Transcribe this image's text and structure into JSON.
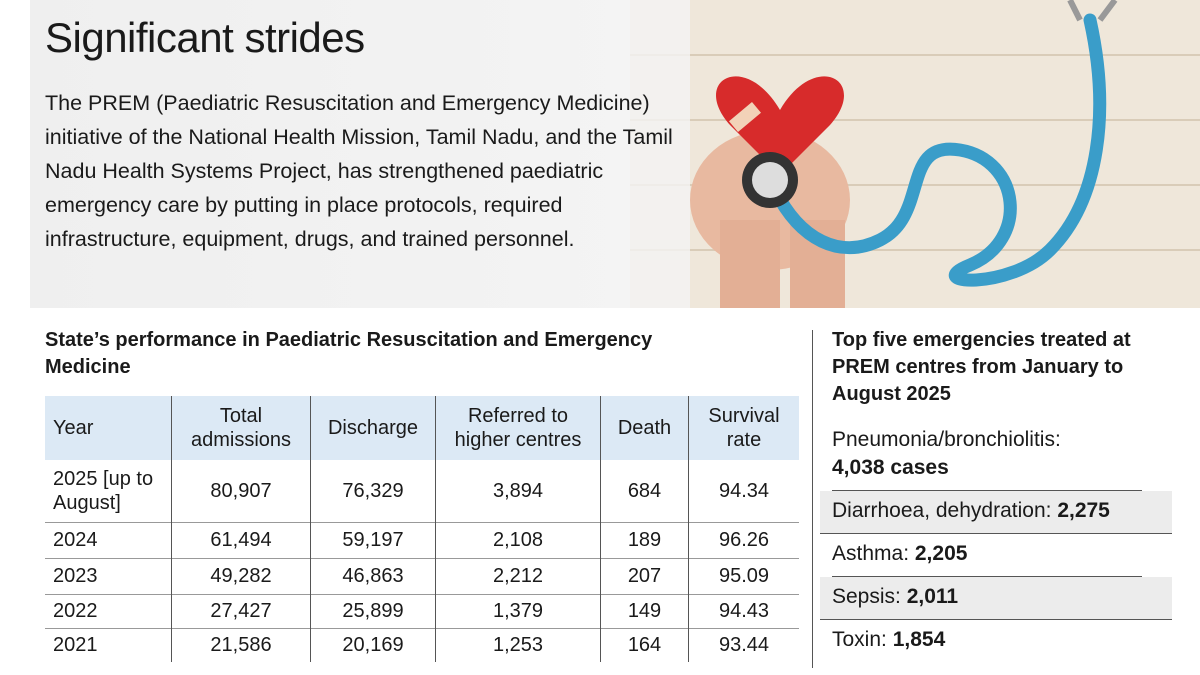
{
  "header": {
    "title": "Significant strides",
    "body": "The PREM (Paediatric Resuscitation and Emergency Medicine) initiative of the National Health Mission, Tamil Nadu, and the Tamil Nadu Health Systems Project, has strengthened paediatric emergency care by putting in place protocols, required infrastructure, equipment, drugs, and trained personnel."
  },
  "table": {
    "title": "State’s performance in Paediatric Resuscitation and Emergency Medicine",
    "columns": [
      "Year",
      "Total admissions",
      "Discharge",
      "Referred to higher centres",
      "Death",
      "Survival rate"
    ],
    "rows": [
      [
        "2025 [up to August]",
        "80,907",
        "76,329",
        "3,894",
        "684",
        "94.34"
      ],
      [
        "2024",
        "61,494",
        "59,197",
        "2,108",
        "189",
        "96.26"
      ],
      [
        "2023",
        "49,282",
        "46,863",
        "2,212",
        "207",
        "95.09"
      ],
      [
        "2022",
        "27,427",
        "25,899",
        "1,379",
        "149",
        "94.43"
      ],
      [
        "2021",
        "21,586",
        "20,169",
        "1,253",
        "164",
        "93.44"
      ]
    ]
  },
  "emergencies": {
    "title": "Top five emergencies treated at PREM centres from January to August 2025",
    "items": [
      {
        "label": "Pneumonia/bronchiolitis:",
        "value": "4,038 cases"
      },
      {
        "label": "Diarrhoea, dehydration:",
        "value": "2,275"
      },
      {
        "label": "Asthma:",
        "value": "2,205"
      },
      {
        "label": "Sepsis:",
        "value": "2,011"
      },
      {
        "label": "Toxin:",
        "value": "1,854"
      }
    ]
  }
}
